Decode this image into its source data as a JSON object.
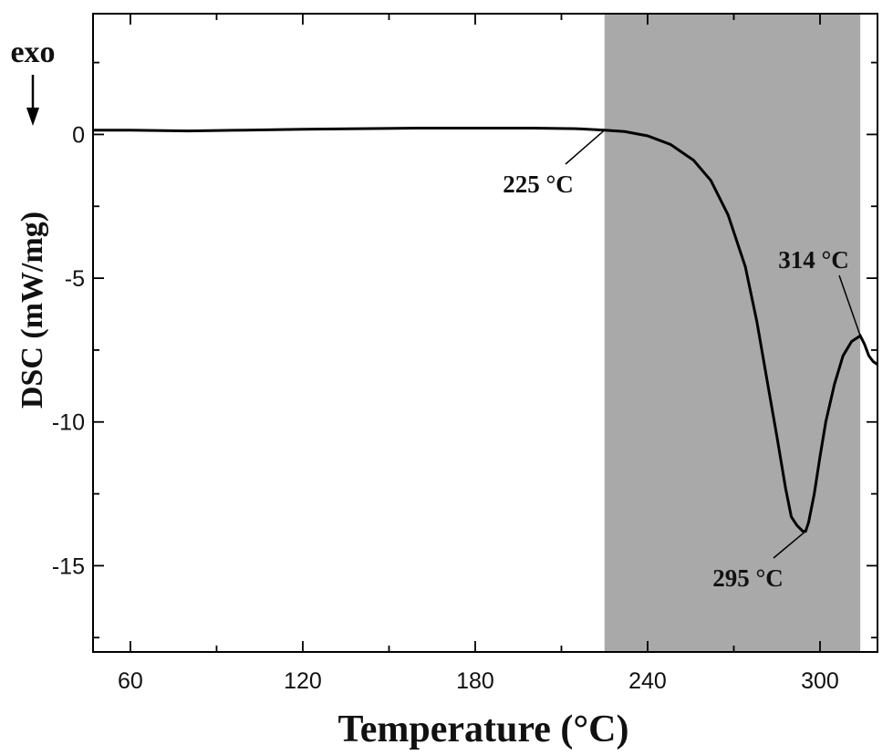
{
  "chart_data": {
    "type": "line",
    "title": "",
    "xlabel": "Temperature (°C)",
    "ylabel": "DSC (mW/mg)",
    "direction_label": "exo",
    "xlim": [
      47,
      320
    ],
    "ylim": [
      -18.0,
      4.2
    ],
    "xticks": [
      60,
      120,
      180,
      240,
      300
    ],
    "yticks": [
      0,
      -5,
      -10,
      -15
    ],
    "shaded_region": {
      "x0": 225,
      "x1": 314,
      "color": "#a9a9a9"
    },
    "series": [
      {
        "x": [
          47,
          60,
          80,
          100,
          120,
          140,
          160,
          180,
          200,
          215,
          225,
          232,
          240,
          248,
          256,
          262,
          268,
          274,
          278,
          282,
          285,
          288,
          290,
          292,
          294,
          295,
          296,
          298,
          300,
          302,
          305,
          308,
          311,
          314,
          315.5,
          317,
          318.5,
          320
        ],
        "y": [
          0.15,
          0.15,
          0.12,
          0.15,
          0.18,
          0.2,
          0.22,
          0.22,
          0.22,
          0.2,
          0.15,
          0.1,
          -0.05,
          -0.35,
          -0.9,
          -1.6,
          -2.8,
          -4.6,
          -6.5,
          -8.8,
          -10.5,
          -12.3,
          -13.3,
          -13.6,
          -13.8,
          -13.8,
          -13.5,
          -12.5,
          -11.2,
          -10.0,
          -8.7,
          -7.7,
          -7.2,
          -7.0,
          -7.3,
          -7.7,
          -7.9,
          -8.0
        ],
        "color": "#000000"
      }
    ],
    "annotations": [
      {
        "text": "225 °C",
        "x": 225,
        "y": 0.15
      },
      {
        "text": "295 °C",
        "x": 295,
        "y": -13.8
      },
      {
        "text": "314 °C",
        "x": 314,
        "y": -7.0
      }
    ]
  }
}
